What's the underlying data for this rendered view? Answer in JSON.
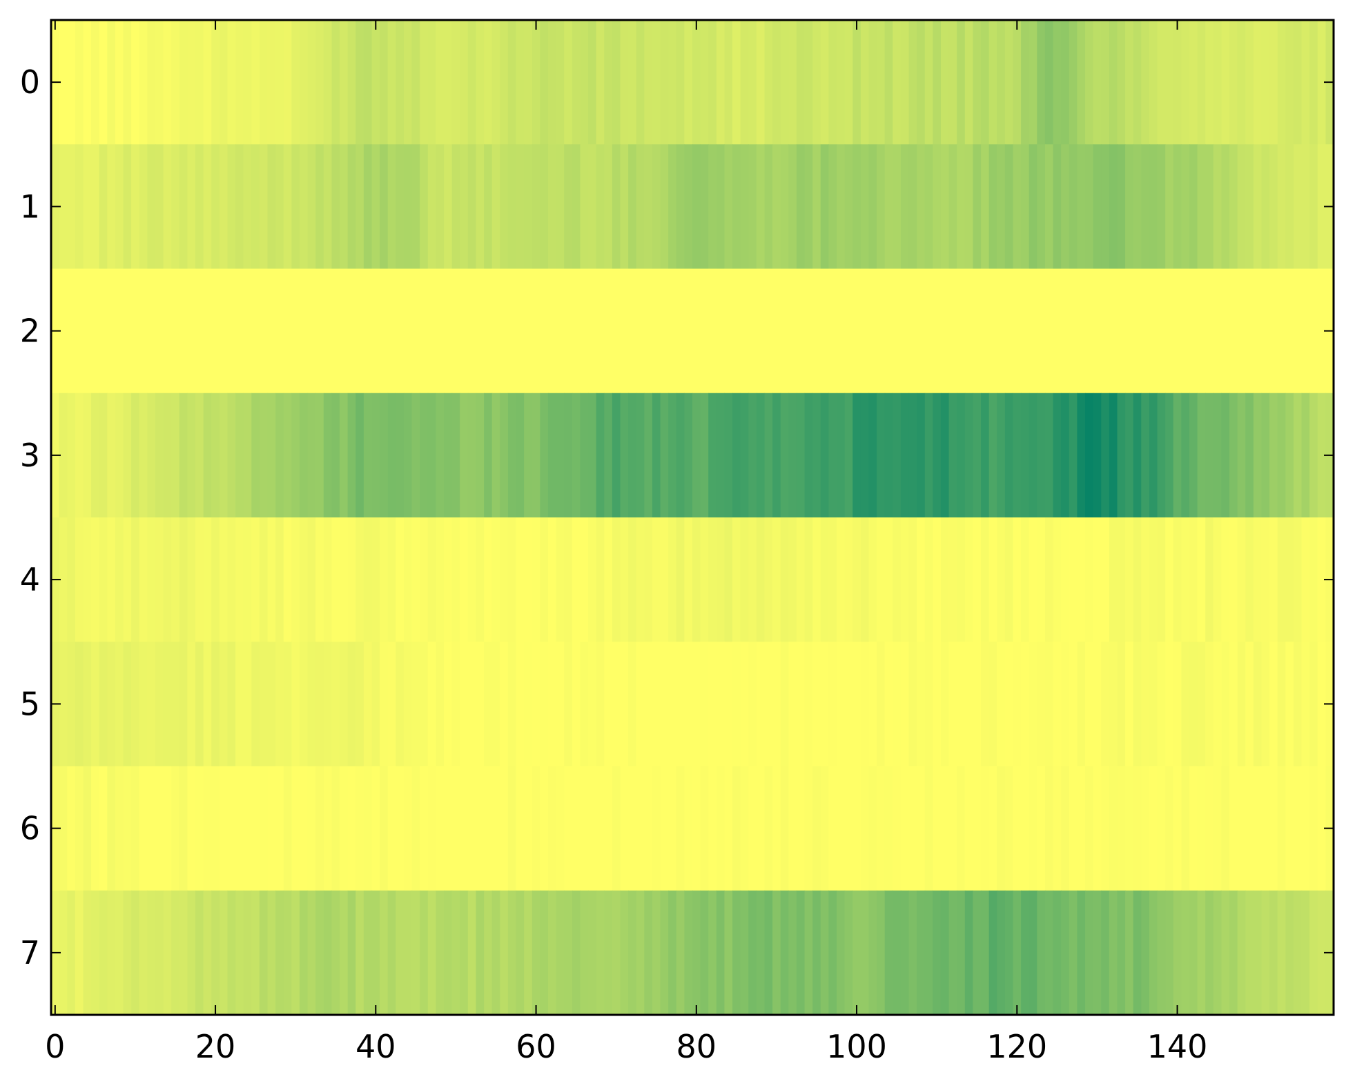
{
  "chart_data": {
    "type": "heatmap",
    "title": "",
    "xlabel": "",
    "ylabel": "",
    "colormap": "summer_r",
    "colors": {
      "low": "#ffff66",
      "high": "#008066",
      "frame": "#000000",
      "background": "#ffffff"
    },
    "value_range": [
      0,
      1
    ],
    "n_columns": 160,
    "rows": [
      0,
      1,
      2,
      3,
      4,
      5,
      6,
      7
    ],
    "xlim": [
      -0.5,
      159.5
    ],
    "ylim": [
      7.5,
      -0.5
    ],
    "x_ticks": [
      0,
      20,
      40,
      60,
      80,
      100,
      120,
      140
    ],
    "x_tick_labels": [
      "0",
      "20",
      "40",
      "60",
      "80",
      "100",
      "120",
      "140"
    ],
    "y_ticks": [
      0,
      1,
      2,
      3,
      4,
      5,
      6,
      7
    ],
    "y_tick_labels": [
      "0",
      "1",
      "2",
      "3",
      "4",
      "5",
      "6",
      "7"
    ],
    "row_profiles": [
      [
        [
          0,
          0.0
        ],
        [
          8,
          0.02
        ],
        [
          18,
          0.06
        ],
        [
          30,
          0.08
        ],
        [
          38,
          0.25
        ],
        [
          46,
          0.2
        ],
        [
          50,
          0.15
        ],
        [
          60,
          0.22
        ],
        [
          75,
          0.2
        ],
        [
          85,
          0.15
        ],
        [
          92,
          0.18
        ],
        [
          100,
          0.22
        ],
        [
          112,
          0.25
        ],
        [
          120,
          0.28
        ],
        [
          124,
          0.45
        ],
        [
          130,
          0.3
        ],
        [
          140,
          0.18
        ],
        [
          150,
          0.14
        ],
        [
          159,
          0.16
        ]
      ],
      [
        [
          0,
          0.1
        ],
        [
          10,
          0.13
        ],
        [
          20,
          0.15
        ],
        [
          30,
          0.2
        ],
        [
          37,
          0.3
        ],
        [
          45,
          0.35
        ],
        [
          47,
          0.18
        ],
        [
          52,
          0.22
        ],
        [
          60,
          0.25
        ],
        [
          70,
          0.26
        ],
        [
          75,
          0.32
        ],
        [
          80,
          0.42
        ],
        [
          85,
          0.35
        ],
        [
          95,
          0.38
        ],
        [
          100,
          0.4
        ],
        [
          110,
          0.3
        ],
        [
          118,
          0.38
        ],
        [
          128,
          0.45
        ],
        [
          135,
          0.42
        ],
        [
          145,
          0.3
        ],
        [
          150,
          0.2
        ],
        [
          159,
          0.12
        ]
      ],
      [
        [
          0,
          0.0
        ],
        [
          159,
          0.0
        ]
      ],
      [
        [
          0,
          0.06
        ],
        [
          8,
          0.12
        ],
        [
          20,
          0.25
        ],
        [
          30,
          0.38
        ],
        [
          40,
          0.55
        ],
        [
          50,
          0.45
        ],
        [
          60,
          0.5
        ],
        [
          70,
          0.68
        ],
        [
          80,
          0.65
        ],
        [
          86,
          0.78
        ],
        [
          92,
          0.7
        ],
        [
          100,
          0.8
        ],
        [
          110,
          0.82
        ],
        [
          118,
          0.75
        ],
        [
          125,
          0.85
        ],
        [
          130,
          0.9
        ],
        [
          135,
          0.82
        ],
        [
          142,
          0.6
        ],
        [
          150,
          0.45
        ],
        [
          155,
          0.35
        ],
        [
          159,
          0.25
        ]
      ],
      [
        [
          0,
          0.06
        ],
        [
          10,
          0.05
        ],
        [
          20,
          0.06
        ],
        [
          30,
          0.03
        ],
        [
          45,
          0.02
        ],
        [
          60,
          0.0
        ],
        [
          75,
          0.04
        ],
        [
          85,
          0.07
        ],
        [
          95,
          0.04
        ],
        [
          105,
          0.02
        ],
        [
          115,
          0.01
        ],
        [
          130,
          0.02
        ],
        [
          145,
          0.03
        ],
        [
          159,
          0.02
        ]
      ],
      [
        [
          0,
          0.08
        ],
        [
          10,
          0.09
        ],
        [
          20,
          0.07
        ],
        [
          30,
          0.06
        ],
        [
          38,
          0.05
        ],
        [
          48,
          0.01
        ],
        [
          55,
          0.0
        ],
        [
          70,
          0.0
        ],
        [
          90,
          0.0
        ],
        [
          120,
          0.0
        ],
        [
          135,
          0.02
        ],
        [
          145,
          0.03
        ],
        [
          159,
          0.0
        ]
      ],
      [
        [
          0,
          0.03
        ],
        [
          10,
          0.02
        ],
        [
          20,
          0.01
        ],
        [
          30,
          0.0
        ],
        [
          159,
          0.0
        ]
      ],
      [
        [
          0,
          0.08
        ],
        [
          10,
          0.14
        ],
        [
          20,
          0.22
        ],
        [
          35,
          0.32
        ],
        [
          45,
          0.26
        ],
        [
          55,
          0.3
        ],
        [
          70,
          0.35
        ],
        [
          80,
          0.45
        ],
        [
          90,
          0.52
        ],
        [
          100,
          0.46
        ],
        [
          110,
          0.55
        ],
        [
          118,
          0.62
        ],
        [
          125,
          0.55
        ],
        [
          135,
          0.5
        ],
        [
          140,
          0.4
        ],
        [
          150,
          0.3
        ],
        [
          159,
          0.2
        ]
      ]
    ]
  }
}
